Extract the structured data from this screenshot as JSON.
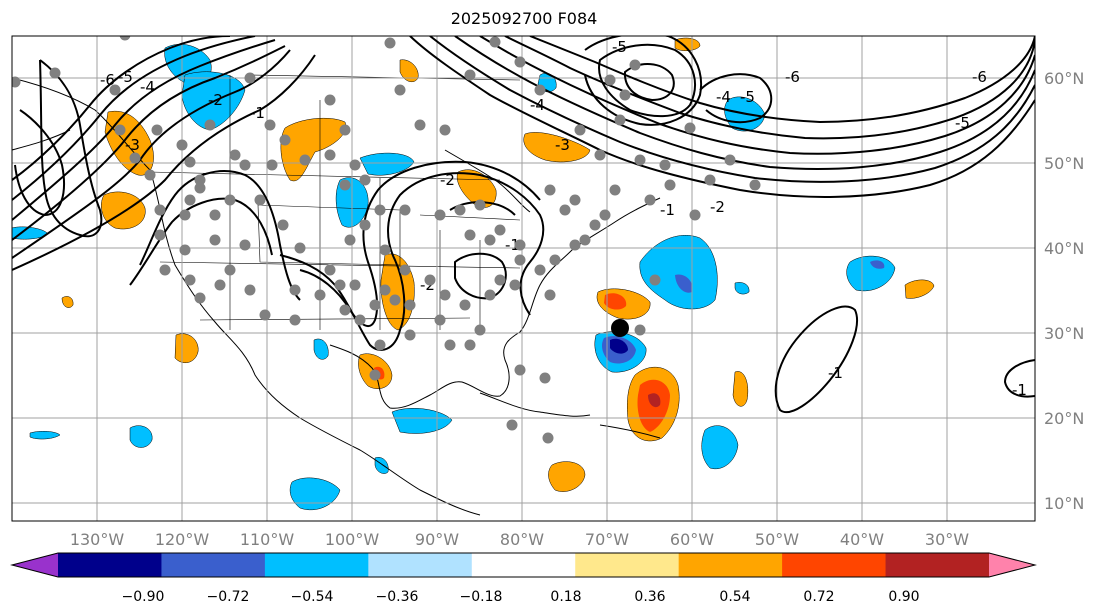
{
  "title": "2025092700 F084",
  "map": {
    "lon_labels": [
      "130°W",
      "120°W",
      "110°W",
      "100°W",
      "90°W",
      "80°W",
      "70°W",
      "60°W",
      "50°W",
      "40°W",
      "30°W"
    ],
    "lat_labels": [
      "60°N",
      "50°N",
      "40°N",
      "30°N",
      "20°N",
      "10°N"
    ],
    "contour_labels": [
      "-6",
      "-5",
      "-4",
      "-3",
      "-2",
      "-1",
      "-1",
      "-2",
      "-3",
      "-4",
      "-5",
      "-6",
      "-5",
      "-4",
      "-2",
      "-1",
      "-2",
      "-6",
      "-5",
      "-1",
      "-1"
    ]
  },
  "colorbar": {
    "tick_labels": [
      "−0.90",
      "−0.72",
      "−0.54",
      "−0.36",
      "−0.18",
      "0.18",
      "0.36",
      "0.54",
      "0.72",
      "0.90"
    ],
    "colors": [
      "#9932cc",
      "#00008b",
      "#3a5fcd",
      "#00bfff",
      "#b0e2ff",
      "#ffffff",
      "#ffe88c",
      "#ffa500",
      "#ff4500",
      "#b22222",
      "#ff82ab"
    ]
  },
  "colors": {
    "obs_marker": "#808080",
    "storm_marker": "#000000",
    "grid": "#a0a0a0"
  }
}
